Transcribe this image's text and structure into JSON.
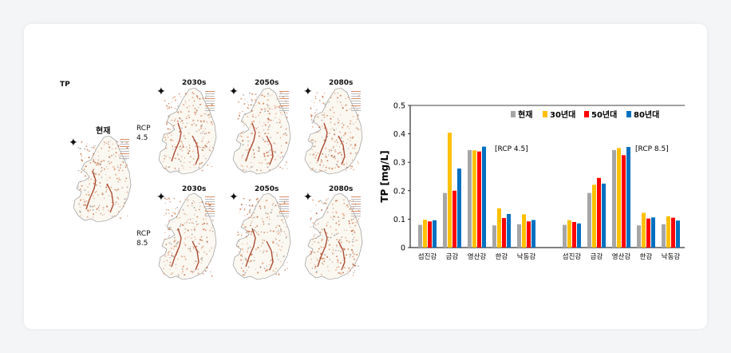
{
  "maps": {
    "figure_label": "TP",
    "current_label": "현재",
    "periods": [
      "2030s",
      "2050s",
      "2080s"
    ],
    "scenarios": [
      "RCP\n4.5",
      "RCP\n8.5"
    ]
  },
  "chart_data": {
    "type": "bar",
    "ylabel": "TP [mg/L]",
    "ylim": [
      0,
      0.5
    ],
    "yticks": [
      "0",
      "0.1",
      "0.2",
      "0.3",
      "0.4",
      "0.5"
    ],
    "groups": [
      {
        "label": "[RCP 4.5]",
        "categories": [
          "섬진강",
          "금강",
          "영산강",
          "한강",
          "낙동강"
        ]
      },
      {
        "label": "[RCP 8.5]",
        "categories": [
          "섬진강",
          "금강",
          "영산강",
          "한강",
          "낙동강"
        ]
      }
    ],
    "legend_position": "top-right",
    "series": [
      {
        "name": "현재",
        "color": "#a6a6a6",
        "values": [
          0.08,
          0.192,
          0.343,
          0.078,
          0.082,
          0.08,
          0.192,
          0.343,
          0.078,
          0.082
        ]
      },
      {
        "name": "30년대",
        "color": "#ffc000",
        "values": [
          0.098,
          0.404,
          0.342,
          0.138,
          0.117,
          0.096,
          0.221,
          0.35,
          0.122,
          0.11
        ]
      },
      {
        "name": "50년대",
        "color": "#ff0000",
        "values": [
          0.092,
          0.2,
          0.338,
          0.104,
          0.092,
          0.09,
          0.245,
          0.325,
          0.102,
          0.105
        ]
      },
      {
        "name": "80년대",
        "color": "#0070c0",
        "values": [
          0.096,
          0.278,
          0.355,
          0.118,
          0.097,
          0.085,
          0.225,
          0.354,
          0.106,
          0.095
        ]
      }
    ]
  }
}
